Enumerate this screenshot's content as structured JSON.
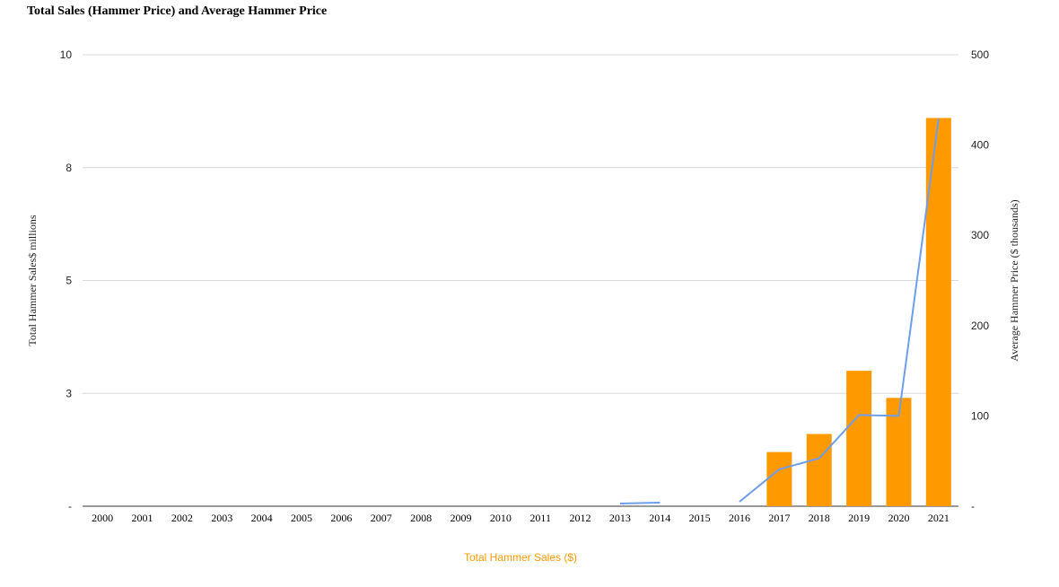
{
  "chart_data": {
    "type": "bar",
    "title": "Total Sales (Hammer Price) and Average Hammer Price",
    "categories": [
      "2000",
      "2001",
      "2002",
      "2003",
      "2004",
      "2005",
      "2006",
      "2007",
      "2008",
      "2009",
      "2010",
      "2011",
      "2012",
      "2013",
      "2014",
      "2015",
      "2016",
      "2017",
      "2018",
      "2019",
      "2020",
      "2021"
    ],
    "series": [
      {
        "name": "Total Hammer Sales ($)",
        "type": "bar",
        "axis": "left",
        "color": "#ff9900",
        "values": [
          0,
          0,
          0,
          0,
          0,
          0,
          0,
          0,
          0,
          0,
          0,
          0,
          0,
          0,
          0,
          0,
          0,
          1.2,
          1.6,
          3.0,
          2.4,
          8.6
        ]
      },
      {
        "type": "line",
        "axis": "right",
        "color": "#6d9eeb",
        "values": [
          null,
          null,
          null,
          null,
          null,
          null,
          null,
          null,
          null,
          null,
          null,
          null,
          null,
          3,
          4,
          null,
          5,
          41,
          53,
          101,
          100,
          429
        ]
      }
    ],
    "left_axis": {
      "label": "Total Hammer Sales$ millions",
      "ylim": [
        0,
        10
      ],
      "ticks": [
        {
          "value": 0,
          "label": "-"
        },
        {
          "value": 2.5,
          "label": "3"
        },
        {
          "value": 5,
          "label": "5"
        },
        {
          "value": 7.5,
          "label": "8"
        },
        {
          "value": 10,
          "label": "10"
        }
      ]
    },
    "right_axis": {
      "label": "Average Hammer Price ($ thousands)",
      "ylim": [
        0,
        500
      ],
      "ticks": [
        {
          "value": 0,
          "label": "-"
        },
        {
          "value": 100,
          "label": "100"
        },
        {
          "value": 200,
          "label": "200"
        },
        {
          "value": 300,
          "label": "300"
        },
        {
          "value": 400,
          "label": "400"
        },
        {
          "value": 500,
          "label": "500"
        }
      ]
    },
    "grid": true,
    "legend": {
      "position": "bottom",
      "label": "Total Hammer Sales ($)",
      "color": "#ff9900"
    }
  }
}
